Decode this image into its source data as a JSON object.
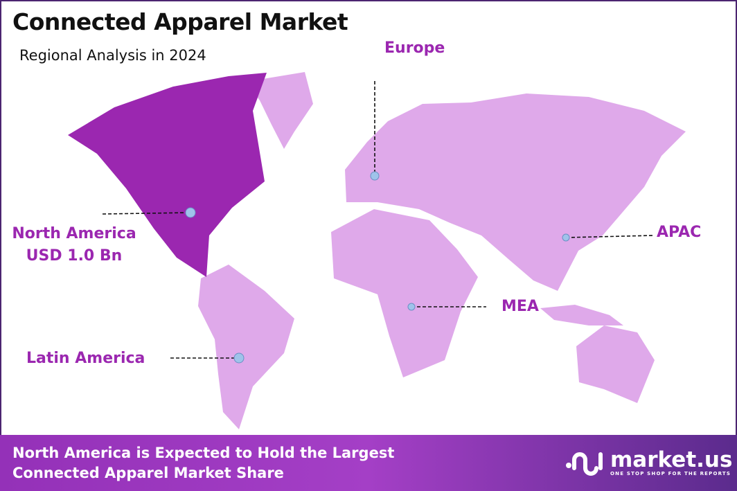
{
  "header": {
    "title": "Connected Apparel Market",
    "subtitle": "Regional Analysis in 2024"
  },
  "colors": {
    "highlight": "#9b27b0",
    "region": "#dfa9ea",
    "marker": "#9fc3ea",
    "frame": "#4b2470"
  },
  "regions": [
    {
      "name": "North America",
      "value": "USD 1.0 Bn",
      "highlighted": true
    },
    {
      "name": "Europe"
    },
    {
      "name": "APAC"
    },
    {
      "name": "MEA"
    },
    {
      "name": "Latin America"
    }
  ],
  "footer": {
    "line1": "North America is Expected to Hold the Largest",
    "line2": "Connected Apparel Market Share"
  },
  "logo": {
    "name": "market.us",
    "tagline": "ONE STOP SHOP FOR THE REPORTS"
  }
}
